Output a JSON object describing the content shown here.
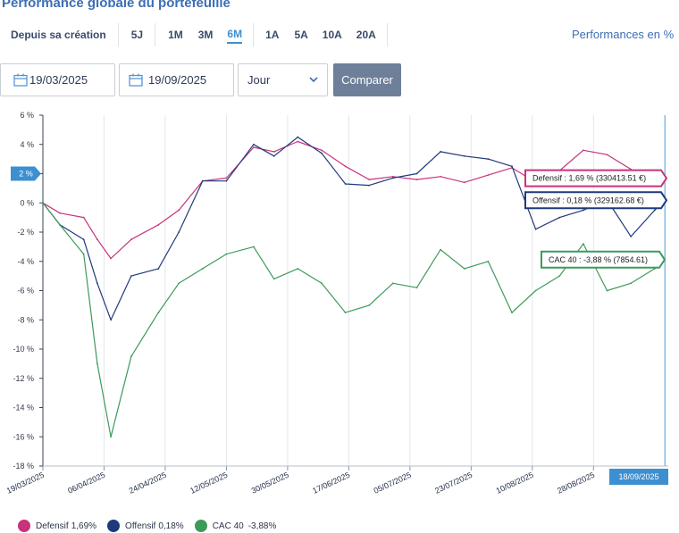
{
  "page": {
    "title": "Performance globale du portefeuille",
    "periods": [
      {
        "label": "Depuis sa création",
        "active": false
      },
      {
        "label": "5J",
        "active": false
      },
      {
        "label": "1M",
        "active": false
      },
      {
        "label": "3M",
        "active": false
      },
      {
        "label": "6M",
        "active": true
      },
      {
        "label": "1A",
        "active": false
      },
      {
        "label": "5A",
        "active": false
      },
      {
        "label": "10A",
        "active": false
      },
      {
        "label": "20A",
        "active": false
      }
    ],
    "perf_mode_label": "Performances en %",
    "start_date": "19/03/2025",
    "end_date": "19/09/2025",
    "granularity": "Jour",
    "compare_label": "Comparer"
  },
  "chart_data": {
    "type": "line",
    "ylim": [
      -18,
      6
    ],
    "y_tick_values": [
      6,
      4,
      2,
      0,
      -2,
      -4,
      -6,
      -8,
      -10,
      -12,
      -14,
      -16,
      -18
    ],
    "y_tick_labels": [
      "6 %",
      "4 %",
      "2 %",
      "0 %",
      "-2 %",
      "-4 %",
      "-6 %",
      "-8 %",
      "-10 %",
      "-12 %",
      "-14 %",
      "-16 %",
      "-18 %"
    ],
    "x_tick_labels": [
      "19/03/2025",
      "06/04/2025",
      "24/04/2025",
      "12/05/2025",
      "30/05/2025",
      "17/06/2025",
      "05/07/2025",
      "23/07/2025",
      "10/08/2025",
      "28/08/2025"
    ],
    "cursor_date": "18/09/2025",
    "highlight_value_label": "2 %",
    "series": [
      {
        "name": "Defensif",
        "color": "#c8327a",
        "last_value_label": "1,69%",
        "tooltip": "Defensif : 1,69 % (330413.51 €)",
        "x": [
          "2025-03-19",
          "2025-03-24",
          "2025-03-31",
          "2025-04-04",
          "2025-04-08",
          "2025-04-14",
          "2025-04-22",
          "2025-04-28",
          "2025-05-05",
          "2025-05-12",
          "2025-05-20",
          "2025-05-26",
          "2025-06-02",
          "2025-06-09",
          "2025-06-16",
          "2025-06-23",
          "2025-06-30",
          "2025-07-07",
          "2025-07-14",
          "2025-07-21",
          "2025-07-28",
          "2025-08-04",
          "2025-08-11",
          "2025-08-18",
          "2025-08-25",
          "2025-09-01",
          "2025-09-08",
          "2025-09-15",
          "2025-09-18"
        ],
        "values": [
          0,
          -0.7,
          -1.0,
          -2.5,
          -3.8,
          -2.5,
          -1.5,
          -0.5,
          1.5,
          1.7,
          3.8,
          3.5,
          4.2,
          3.6,
          2.5,
          1.6,
          1.8,
          1.6,
          1.8,
          1.4,
          1.9,
          2.4,
          1.4,
          2.2,
          3.6,
          3.3,
          2.3,
          1.3,
          1.69
        ]
      },
      {
        "name": "Offensif",
        "color": "#1f3a7a",
        "last_value_label": "0,18%",
        "tooltip": "Offensif : 0,18 % (329162.68 €)",
        "x": [
          "2025-03-19",
          "2025-03-24",
          "2025-03-31",
          "2025-04-04",
          "2025-04-08",
          "2025-04-14",
          "2025-04-22",
          "2025-04-28",
          "2025-05-05",
          "2025-05-12",
          "2025-05-20",
          "2025-05-26",
          "2025-06-02",
          "2025-06-09",
          "2025-06-16",
          "2025-06-23",
          "2025-06-30",
          "2025-07-07",
          "2025-07-14",
          "2025-07-21",
          "2025-07-28",
          "2025-08-04",
          "2025-08-11",
          "2025-08-18",
          "2025-08-25",
          "2025-09-01",
          "2025-09-08",
          "2025-09-15",
          "2025-09-18"
        ],
        "values": [
          0,
          -1.5,
          -2.5,
          -5.5,
          -8.0,
          -5.0,
          -4.5,
          -2.0,
          1.5,
          1.5,
          4.0,
          3.2,
          4.5,
          3.4,
          1.3,
          1.2,
          1.7,
          2.0,
          3.5,
          3.2,
          3.0,
          2.5,
          -1.8,
          -1.0,
          -0.5,
          0.2,
          -2.3,
          -0.5,
          0.18
        ]
      },
      {
        "name": "CAC 40",
        "color": "#3d9a5a",
        "last_value_label": "-3,88%",
        "tooltip": "CAC 40 : -3,88 % (7854.61)",
        "x": [
          "2025-03-19",
          "2025-03-24",
          "2025-03-31",
          "2025-04-04",
          "2025-04-08",
          "2025-04-14",
          "2025-04-22",
          "2025-04-28",
          "2025-05-05",
          "2025-05-12",
          "2025-05-20",
          "2025-05-26",
          "2025-06-02",
          "2025-06-09",
          "2025-06-16",
          "2025-06-23",
          "2025-06-30",
          "2025-07-07",
          "2025-07-14",
          "2025-07-21",
          "2025-07-28",
          "2025-08-04",
          "2025-08-11",
          "2025-08-18",
          "2025-08-25",
          "2025-09-01",
          "2025-09-08",
          "2025-09-15",
          "2025-09-18"
        ],
        "values": [
          0,
          -1.5,
          -3.5,
          -11.0,
          -16.0,
          -10.5,
          -7.5,
          -5.5,
          -4.5,
          -3.5,
          -3.0,
          -5.2,
          -4.5,
          -5.5,
          -7.5,
          -7.0,
          -5.5,
          -5.8,
          -3.2,
          -4.5,
          -4.0,
          -7.5,
          -6.0,
          -5.0,
          -2.8,
          -6.0,
          -5.5,
          -4.5,
          -3.88
        ]
      }
    ]
  }
}
